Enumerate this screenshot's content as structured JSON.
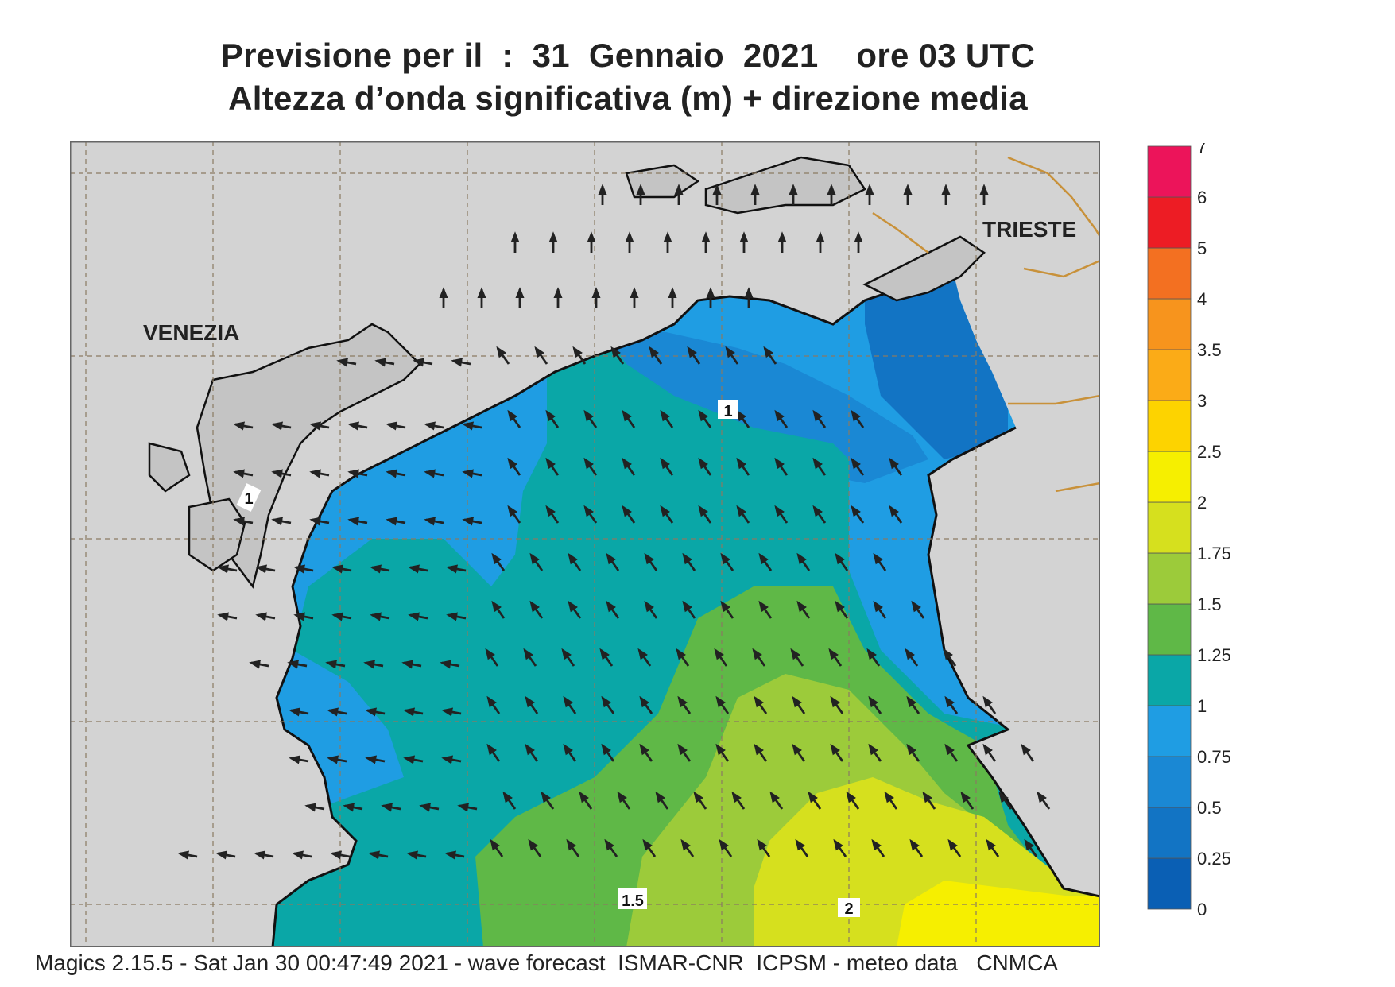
{
  "title_line1": "Previsione per il  :  31  Gennaio  2021    ore 03 UTC",
  "title_line2": "Altezza d’onda significativa (m) + direzione media",
  "cities": {
    "venezia": "VENEZIA",
    "trieste": "TRIESTE"
  },
  "contour_labels": [
    "1",
    "1",
    "1.5",
    "2"
  ],
  "legend": {
    "labels": [
      "0",
      "0.25",
      "0.5",
      "0.75",
      "1",
      "1.25",
      "1.5",
      "1.75",
      "2",
      "2.5",
      "3",
      "3.5",
      "4",
      "5",
      "6",
      "7"
    ],
    "colors": [
      "#0a5fb4",
      "#1274c4",
      "#1a88d4",
      "#1f9de3",
      "#0aa7a7",
      "#5fb847",
      "#9ccb3a",
      "#d6e01e",
      "#f6ef00",
      "#fdd300",
      "#fbab17",
      "#f7941d",
      "#f37021",
      "#ed1c24",
      "#ec145a"
    ]
  },
  "footer": "Magics 2.15.5 - Sat Jan 30 00:47:49 2021 - wave forecast  ISMAR-CNR  ICPSM - meteo data   CNMCA"
}
